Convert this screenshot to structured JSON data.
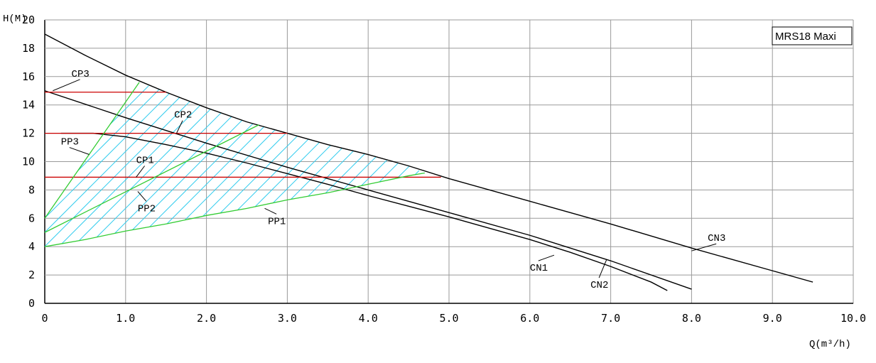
{
  "chart_data": {
    "type": "line",
    "title": "MRS18 Maxi",
    "xlabel": "Q(m³/h)",
    "ylabel": "H(M)",
    "xlim": [
      0,
      10
    ],
    "ylim": [
      0,
      20
    ],
    "grid": true,
    "x_ticks": [
      "0",
      "1.0",
      "2.0",
      "3.0",
      "4.0",
      "5.0",
      "6.0",
      "7.0",
      "8.0",
      "9.0",
      "10.0"
    ],
    "y_ticks": [
      "0",
      "2",
      "4",
      "6",
      "8",
      "10",
      "12",
      "14",
      "16",
      "18",
      "20"
    ],
    "colors": {
      "curve": "#000000",
      "cp": "#cc0000",
      "pp": "#33cc33",
      "hatch": "#33ccee"
    },
    "series": [
      {
        "name": "CN3",
        "color": "#000000",
        "x": [
          0,
          0.5,
          1.0,
          1.5,
          2.0,
          2.5,
          3.0,
          3.5,
          4.0,
          4.5,
          5.0,
          6.0,
          7.0,
          8.0,
          9.0,
          9.5
        ],
        "y": [
          19.0,
          17.5,
          16.1,
          14.9,
          13.8,
          12.8,
          12.0,
          11.2,
          10.5,
          9.7,
          8.8,
          7.2,
          5.6,
          3.9,
          2.3,
          1.5
        ]
      },
      {
        "name": "CN2",
        "color": "#000000",
        "x": [
          0,
          1.0,
          2.0,
          3.0,
          4.0,
          5.0,
          6.0,
          7.0,
          8.0
        ],
        "y": [
          15.0,
          13.1,
          11.3,
          9.6,
          8.0,
          6.4,
          4.8,
          3.0,
          1.0
        ]
      },
      {
        "name": "CN1",
        "color": "#000000",
        "x": [
          0.2,
          0.6,
          1.0,
          1.5,
          2.0,
          2.5,
          3.0,
          3.5,
          4.0,
          4.5,
          5.0,
          5.5,
          6.0,
          6.5,
          7.0,
          7.5,
          7.7
        ],
        "y": [
          12.0,
          12.0,
          11.75,
          11.2,
          10.6,
          9.9,
          9.15,
          8.4,
          7.6,
          6.85,
          6.1,
          5.3,
          4.5,
          3.6,
          2.6,
          1.5,
          0.9
        ]
      },
      {
        "name": "CP3",
        "color": "#cc0000",
        "x": [
          0,
          1.5
        ],
        "y": [
          14.9,
          14.9
        ]
      },
      {
        "name": "CP2",
        "color": "#cc0000",
        "x": [
          0,
          3.0
        ],
        "y": [
          12.0,
          12.0
        ]
      },
      {
        "name": "CP1",
        "color": "#cc0000",
        "x": [
          0,
          4.9
        ],
        "y": [
          8.9,
          8.9
        ]
      },
      {
        "name": "PP3",
        "color": "#33cc33",
        "x": [
          0,
          1.17
        ],
        "y": [
          6.0,
          15.6
        ]
      },
      {
        "name": "PP2",
        "color": "#33cc33",
        "x": [
          0,
          2.65
        ],
        "y": [
          5.0,
          12.6
        ]
      },
      {
        "name": "PP1",
        "color": "#33cc33",
        "x": [
          0,
          0.5,
          1.0,
          1.5,
          2.0,
          2.5,
          3.0,
          3.5,
          4.0,
          4.5,
          4.7
        ],
        "y": [
          4.0,
          4.5,
          5.1,
          5.6,
          6.2,
          6.7,
          7.3,
          7.8,
          8.4,
          9.0,
          9.2
        ]
      }
    ],
    "annotations": [
      {
        "text": "CP3",
        "x": 0.33,
        "y": 16.0,
        "tx": 0.1,
        "ty": 15.0
      },
      {
        "text": "CP2",
        "x": 1.6,
        "y": 13.1,
        "tx": 1.63,
        "ty": 12.0
      },
      {
        "text": "CP1",
        "x": 1.13,
        "y": 9.9,
        "tx": 1.13,
        "ty": 8.9
      },
      {
        "text": "PP3",
        "x": 0.2,
        "y": 11.2,
        "tx": 0.55,
        "ty": 10.5
      },
      {
        "text": "PP2",
        "x": 1.15,
        "y": 6.5,
        "tx": 1.15,
        "ty": 7.9
      },
      {
        "text": "PP1",
        "x": 2.76,
        "y": 5.6,
        "tx": 2.72,
        "ty": 6.7
      },
      {
        "text": "CN1",
        "x": 6.0,
        "y": 2.3,
        "tx": 6.3,
        "ty": 3.4
      },
      {
        "text": "CN2",
        "x": 6.75,
        "y": 1.1,
        "tx": 6.95,
        "ty": 3.1
      },
      {
        "text": "CN3",
        "x": 8.2,
        "y": 4.4,
        "tx": 8.0,
        "ty": 3.7
      }
    ]
  }
}
